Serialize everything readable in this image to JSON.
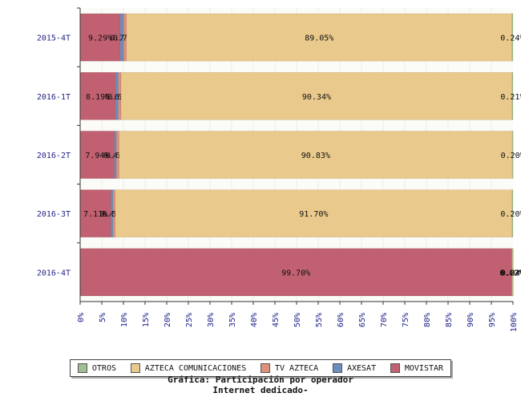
{
  "chart_data": {
    "type": "bar",
    "orientation": "horizontal",
    "stacked": true,
    "percent": true,
    "title": "Gráfica: Participación por operador",
    "subtitle": "Internet dedicado-",
    "categories": [
      "2015-4T",
      "2016-1T",
      "2016-2T",
      "2016-3T",
      "2016-4T"
    ],
    "xlim": [
      0,
      100
    ],
    "xticks": [
      "0%",
      "5%",
      "10%",
      "15%",
      "20%",
      "25%",
      "30%",
      "35%",
      "40%",
      "45%",
      "50%",
      "55%",
      "60%",
      "65%",
      "70%",
      "75%",
      "80%",
      "85%",
      "90%",
      "95%",
      "100%"
    ],
    "grid": true,
    "legend_position": "bottom",
    "series": [
      {
        "name": "MOVISTAR",
        "color": "#c06070",
        "values": [
          9.29,
          8.19,
          7.94,
          7.11,
          99.7
        ],
        "labels": [
          "9.29%",
          "8.19%",
          "7.94%",
          "7.11%",
          "99.70%"
        ]
      },
      {
        "name": "AXESAT",
        "color": "#6c8ebf",
        "values": [
          0.71,
          0.63,
          0.44,
          0.46,
          0.02
        ],
        "labels": [
          "0.71%",
          "0.63%",
          "0.44%",
          "0.46%",
          "0.02%"
        ]
      },
      {
        "name": "TV AZTECA",
        "color": "#de9079",
        "values": [
          0.71,
          0.63,
          0.62,
          0.53,
          0.02
        ],
        "labels": [
          "0.71%",
          "0.63%",
          "0.62%",
          "0.53%",
          "0.02%"
        ]
      },
      {
        "name": "AZTECA COMUNICACIONES",
        "color": "#e9ca8c",
        "values": [
          89.05,
          90.34,
          90.83,
          91.7,
          0.22
        ],
        "labels": [
          "89.05%",
          "90.34%",
          "90.83%",
          "91.70%",
          "0.22%"
        ]
      },
      {
        "name": "OTROS",
        "color": "#9fbf8f",
        "values": [
          0.24,
          0.21,
          0.2,
          0.2,
          0.04
        ],
        "labels": [
          "0.24%",
          "0.21%",
          "0.20%",
          "0.20%",
          "0.04%"
        ]
      }
    ],
    "legend": [
      "OTROS",
      "AZTECA COMUNICACIONES",
      "TV AZTECA",
      "AXESAT",
      "MOVISTAR"
    ]
  }
}
